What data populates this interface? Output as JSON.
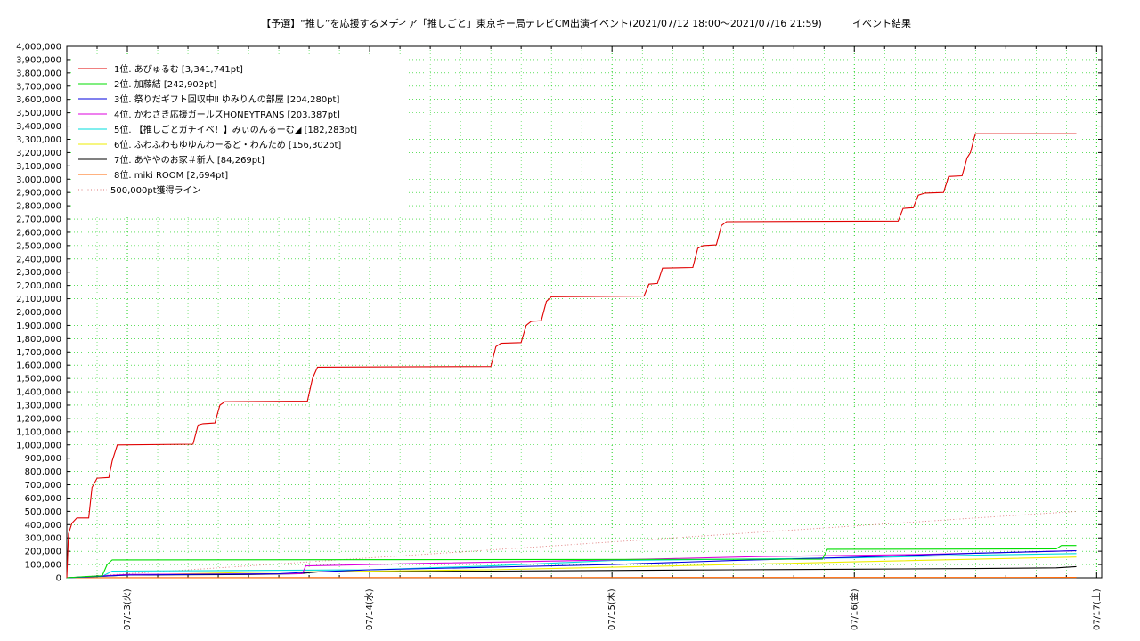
{
  "chart_data": {
    "type": "line",
    "title": "【予選】“推し”を応援するメディア「推しごと」東京キー局テレビCM出演イベント(2021/07/12 18:00〜2021/07/16 21:59)",
    "subtitle": "イベント結果",
    "xlabel": "",
    "ylabel": "",
    "grid": true,
    "legend_position": "top-left",
    "x_range": [
      "2021-07-12 18:00",
      "2021-07-17 00:30"
    ],
    "ylim": [
      0,
      4000000
    ],
    "y_ticks": [
      "0",
      "100,000",
      "200,000",
      "300,000",
      "400,000",
      "500,000",
      "600,000",
      "700,000",
      "800,000",
      "900,000",
      "1,000,000",
      "1,100,000",
      "1,200,000",
      "1,300,000",
      "1,400,000",
      "1,500,000",
      "1,600,000",
      "1,700,000",
      "1,800,000",
      "1,900,000",
      "2,000,000",
      "2,100,000",
      "2,200,000",
      "2,300,000",
      "2,400,000",
      "2,500,000",
      "2,600,000",
      "2,700,000",
      "2,800,000",
      "2,900,000",
      "3,000,000",
      "3,100,000",
      "3,200,000",
      "3,300,000",
      "3,400,000",
      "3,500,000",
      "3,600,000",
      "3,700,000",
      "3,800,000",
      "3,900,000",
      "4,000,000"
    ],
    "x_ticks": [
      {
        "t": "2021-07-13 00:00",
        "label": "07/13(火)"
      },
      {
        "t": "2021-07-14 00:00",
        "label": "07/14(水)"
      },
      {
        "t": "2021-07-15 00:00",
        "label": "07/15(木)"
      },
      {
        "t": "2021-07-16 00:00",
        "label": "07/16(金)"
      },
      {
        "t": "2021-07-17 00:00",
        "label": "07/17(土)"
      }
    ],
    "series": [
      {
        "name": "1位. あぴゅるむ [3,341,741pt]",
        "color": "#e00000",
        "points": [
          [
            "2021-07-12 18:00",
            0
          ],
          [
            "2021-07-12 18:10",
            330000
          ],
          [
            "2021-07-12 18:30",
            410000
          ],
          [
            "2021-07-12 19:00",
            450000
          ],
          [
            "2021-07-12 20:10",
            450000
          ],
          [
            "2021-07-12 20:30",
            680000
          ],
          [
            "2021-07-12 21:00",
            750000
          ],
          [
            "2021-07-12 22:10",
            755000
          ],
          [
            "2021-07-12 22:30",
            880000
          ],
          [
            "2021-07-12 23:00",
            1000000
          ],
          [
            "2021-07-13 06:30",
            1005000
          ],
          [
            "2021-07-13 07:00",
            1150000
          ],
          [
            "2021-07-13 07:30",
            1160000
          ],
          [
            "2021-07-13 08:40",
            1165000
          ],
          [
            "2021-07-13 09:10",
            1300000
          ],
          [
            "2021-07-13 09:40",
            1325000
          ],
          [
            "2021-07-13 17:50",
            1330000
          ],
          [
            "2021-07-13 18:20",
            1500000
          ],
          [
            "2021-07-13 18:50",
            1585000
          ],
          [
            "2021-07-14 12:00",
            1590000
          ],
          [
            "2021-07-14 12:30",
            1740000
          ],
          [
            "2021-07-14 13:00",
            1765000
          ],
          [
            "2021-07-14 15:00",
            1770000
          ],
          [
            "2021-07-14 15:30",
            1900000
          ],
          [
            "2021-07-14 16:00",
            1930000
          ],
          [
            "2021-07-14 17:00",
            1935000
          ],
          [
            "2021-07-14 17:30",
            2080000
          ],
          [
            "2021-07-14 18:00",
            2115000
          ],
          [
            "2021-07-15 03:10",
            2120000
          ],
          [
            "2021-07-15 03:40",
            2210000
          ],
          [
            "2021-07-15 04:30",
            2215000
          ],
          [
            "2021-07-15 05:00",
            2330000
          ],
          [
            "2021-07-15 08:00",
            2335000
          ],
          [
            "2021-07-15 08:30",
            2480000
          ],
          [
            "2021-07-15 09:00",
            2500000
          ],
          [
            "2021-07-15 10:20",
            2505000
          ],
          [
            "2021-07-15 10:50",
            2650000
          ],
          [
            "2021-07-15 11:20",
            2680000
          ],
          [
            "2021-07-16 04:20",
            2685000
          ],
          [
            "2021-07-16 04:50",
            2780000
          ],
          [
            "2021-07-16 05:50",
            2785000
          ],
          [
            "2021-07-16 06:20",
            2880000
          ],
          [
            "2021-07-16 07:00",
            2895000
          ],
          [
            "2021-07-16 08:50",
            2900000
          ],
          [
            "2021-07-16 09:20",
            3020000
          ],
          [
            "2021-07-16 10:40",
            3025000
          ],
          [
            "2021-07-16 11:10",
            3160000
          ],
          [
            "2021-07-16 11:30",
            3200000
          ],
          [
            "2021-07-16 11:40",
            3250000
          ],
          [
            "2021-07-16 11:50",
            3300000
          ],
          [
            "2021-07-16 12:00",
            3341741
          ],
          [
            "2021-07-16 21:59",
            3341741
          ]
        ]
      },
      {
        "name": "2位. 加藤結 [242,902pt]",
        "color": "#00dd00",
        "points": [
          [
            "2021-07-12 18:00",
            0
          ],
          [
            "2021-07-12 20:00",
            10000
          ],
          [
            "2021-07-12 21:30",
            15000
          ],
          [
            "2021-07-12 22:00",
            100000
          ],
          [
            "2021-07-12 22:30",
            135000
          ],
          [
            "2021-07-15 20:50",
            140000
          ],
          [
            "2021-07-15 21:20",
            215000
          ],
          [
            "2021-07-16 20:00",
            218000
          ],
          [
            "2021-07-16 20:30",
            242902
          ],
          [
            "2021-07-16 21:59",
            242902
          ]
        ]
      },
      {
        "name": "3位. 祭りだギフト回収中‼ ゆみりんの部屋 [204,280pt]",
        "color": "#0000dd",
        "points": [
          [
            "2021-07-12 18:00",
            0
          ],
          [
            "2021-07-13 00:00",
            20000
          ],
          [
            "2021-07-13 15:00",
            30000
          ],
          [
            "2021-07-13 17:30",
            40000
          ],
          [
            "2021-07-14 00:00",
            60000
          ],
          [
            "2021-07-14 12:00",
            80000
          ],
          [
            "2021-07-15 00:00",
            100000
          ],
          [
            "2021-07-15 12:00",
            130000
          ],
          [
            "2021-07-16 00:00",
            155000
          ],
          [
            "2021-07-16 12:00",
            185000
          ],
          [
            "2021-07-16 21:59",
            204280
          ]
        ]
      },
      {
        "name": "4位. かわさき応援ガールズHONEYTRANS [203,387pt]",
        "color": "#dd00dd",
        "points": [
          [
            "2021-07-12 18:00",
            0
          ],
          [
            "2021-07-13 00:00",
            25000
          ],
          [
            "2021-07-13 17:20",
            30000
          ],
          [
            "2021-07-13 17:40",
            90000
          ],
          [
            "2021-07-14 06:00",
            110000
          ],
          [
            "2021-07-14 21:00",
            130000
          ],
          [
            "2021-07-15 06:00",
            145000
          ],
          [
            "2021-07-15 15:00",
            160000
          ],
          [
            "2021-07-16 06:00",
            175000
          ],
          [
            "2021-07-16 21:59",
            203387
          ]
        ]
      },
      {
        "name": "5位. 【推しごとガチイベ！】みぃのんるーむ◢ [182,283pt]",
        "color": "#00dddd",
        "points": [
          [
            "2021-07-12 18:00",
            0
          ],
          [
            "2021-07-12 21:30",
            10000
          ],
          [
            "2021-07-12 22:30",
            50000
          ],
          [
            "2021-07-13 12:00",
            55000
          ],
          [
            "2021-07-14 00:00",
            60000
          ],
          [
            "2021-07-14 12:00",
            90000
          ],
          [
            "2021-07-15 00:00",
            130000
          ],
          [
            "2021-07-15 12:00",
            140000
          ],
          [
            "2021-07-16 00:00",
            150000
          ],
          [
            "2021-07-16 12:00",
            170000
          ],
          [
            "2021-07-16 21:59",
            182283
          ]
        ]
      },
      {
        "name": "6位. ふわふわもゆゆんわーるど・わんため [156,302pt]",
        "color": "#eeee00",
        "points": [
          [
            "2021-07-12 18:00",
            0
          ],
          [
            "2021-07-13 00:00",
            20000
          ],
          [
            "2021-07-13 12:00",
            40000
          ],
          [
            "2021-07-14 00:00",
            50000
          ],
          [
            "2021-07-14 12:00",
            60000
          ],
          [
            "2021-07-15 00:00",
            80000
          ],
          [
            "2021-07-15 12:00",
            100000
          ],
          [
            "2021-07-16 00:00",
            120000
          ],
          [
            "2021-07-16 12:00",
            140000
          ],
          [
            "2021-07-16 21:59",
            156302
          ]
        ]
      },
      {
        "name": "7位. あややのお家＃新人 [84,269pt]",
        "color": "#000000",
        "points": [
          [
            "2021-07-12 18:00",
            0
          ],
          [
            "2021-07-12 21:00",
            10000
          ],
          [
            "2021-07-13 00:00",
            20000
          ],
          [
            "2021-07-13 12:00",
            25000
          ],
          [
            "2021-07-13 17:00",
            30000
          ],
          [
            "2021-07-13 19:00",
            45000
          ],
          [
            "2021-07-14 12:00",
            50000
          ],
          [
            "2021-07-15 00:00",
            55000
          ],
          [
            "2021-07-15 12:00",
            60000
          ],
          [
            "2021-07-16 00:00",
            65000
          ],
          [
            "2021-07-16 12:00",
            70000
          ],
          [
            "2021-07-16 20:00",
            75000
          ],
          [
            "2021-07-16 21:59",
            84269
          ]
        ]
      },
      {
        "name": "8位. miki ROOM [2,694pt]",
        "color": "#ff6600",
        "points": [
          [
            "2021-07-12 18:00",
            0
          ],
          [
            "2021-07-14 00:00",
            1500
          ],
          [
            "2021-07-16 21:59",
            2694
          ]
        ]
      },
      {
        "name": "500,000pt獲得ライン",
        "color": "#dd7777",
        "dashed": true,
        "points": [
          [
            "2021-07-12 18:00",
            0
          ],
          [
            "2021-07-16 21:59",
            500000
          ]
        ]
      }
    ]
  }
}
